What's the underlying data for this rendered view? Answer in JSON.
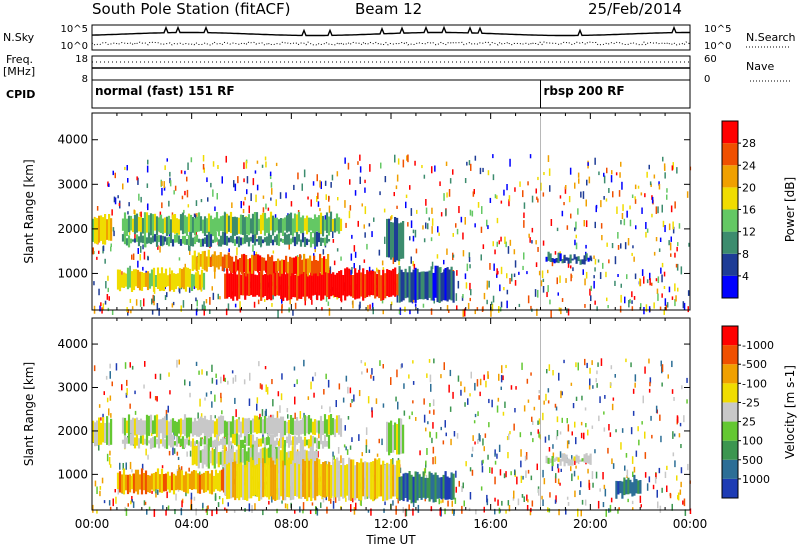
{
  "header": {
    "station": "South Pole Station (fitACF)",
    "beam": "Beam 12",
    "date": "25/Feb/2014"
  },
  "noise_panel": {
    "left_label": "N.Sky",
    "right_label": "N.Search",
    "left_ticks": [
      "10^5",
      "10^0"
    ],
    "right_ticks": [
      "10^5",
      "10^0"
    ]
  },
  "freq_panel": {
    "left_label_1": "Freq.",
    "left_label_2": "[MHz]",
    "right_label": "Nave",
    "left_ticks": [
      "18",
      "8"
    ],
    "right_ticks": [
      "60",
      "0"
    ]
  },
  "cpid": {
    "label": "CPID",
    "segments": [
      {
        "name": "normal (fast) 151 RF",
        "start_hour": 0
      },
      {
        "name": "rbsp 200 RF",
        "start_hour": 18
      }
    ]
  },
  "chart_data": [
    {
      "type": "heatmap",
      "ylabel": "Slant Range [km]",
      "x_hours": [
        0,
        24
      ],
      "ylim": [
        180,
        4600
      ],
      "yticks": [
        1000,
        2000,
        3000,
        4000
      ],
      "colorbar": {
        "label": "Power [dB]",
        "ticks": [
          "4",
          "8",
          "12",
          "16",
          "20",
          "24",
          "28"
        ],
        "colors": [
          "#0000ff",
          "#1e3c96",
          "#3c8c6e",
          "#64c864",
          "#f0dc00",
          "#f0a000",
          "#f05000",
          "#ff0000"
        ]
      },
      "regions": [
        {
          "h0": 0.0,
          "h1": 0.8,
          "r0": 1700,
          "r1": 2250,
          "val": 4
        },
        {
          "h0": 1.2,
          "h1": 10.0,
          "r0": 1900,
          "r1": 2300,
          "val": 3
        },
        {
          "h0": 1.2,
          "h1": 9.5,
          "r0": 1650,
          "r1": 1850,
          "val": 2
        },
        {
          "h0": 1.0,
          "h1": 4.5,
          "r0": 650,
          "r1": 1050,
          "val": 4
        },
        {
          "h0": 4.0,
          "h1": 5.5,
          "r0": 1100,
          "r1": 1450,
          "val": 5
        },
        {
          "h0": 5.3,
          "h1": 12.3,
          "r0": 450,
          "r1": 1050,
          "val": 7
        },
        {
          "h0": 5.5,
          "h1": 9.5,
          "r0": 1000,
          "r1": 1350,
          "val": 6
        },
        {
          "h0": 11.8,
          "h1": 12.5,
          "r0": 1300,
          "r1": 2200,
          "val": 2
        },
        {
          "h0": 12.3,
          "h1": 14.5,
          "r0": 400,
          "r1": 1100,
          "val": 1
        },
        {
          "h0": 18.2,
          "h1": 20.0,
          "r0": 1250,
          "r1": 1400,
          "val": 1
        }
      ]
    },
    {
      "type": "heatmap",
      "ylabel": "Slant Range [km]",
      "xlabel": "Time UT",
      "xtick_labels": [
        "00:00",
        "04:00",
        "08:00",
        "12:00",
        "16:00",
        "20:00",
        "00:00"
      ],
      "x_hours": [
        0,
        24
      ],
      "ylim": [
        180,
        4600
      ],
      "yticks": [
        1000,
        2000,
        3000,
        4000
      ],
      "colorbar": {
        "label": "Velocity [m s-1]",
        "ticks": [
          "1000",
          "500",
          "100",
          "25",
          "-25",
          "-100",
          "-500",
          "-1000"
        ],
        "colors": [
          "#1e3cb4",
          "#2c6e96",
          "#3c9650",
          "#64c832",
          "#c8c8c8",
          "#f0dc00",
          "#f0a000",
          "#f05000",
          "#ff0000"
        ]
      },
      "regions": [
        {
          "h0": 0.0,
          "h1": 0.8,
          "r0": 1700,
          "r1": 2250,
          "val": 4
        },
        {
          "h0": 1.2,
          "h1": 10.0,
          "r0": 1900,
          "r1": 2300,
          "val": 4
        },
        {
          "h0": 1.2,
          "h1": 9.5,
          "r0": 1650,
          "r1": 1850,
          "val": 4
        },
        {
          "h0": 4.0,
          "h1": 9.0,
          "r0": 1200,
          "r1": 1600,
          "val": 4
        },
        {
          "h0": 1.0,
          "h1": 5.5,
          "r0": 600,
          "r1": 1050,
          "val": 6
        },
        {
          "h0": 5.3,
          "h1": 12.3,
          "r0": 450,
          "r1": 1300,
          "val": 5
        },
        {
          "h0": 11.8,
          "h1": 12.5,
          "r0": 1500,
          "r1": 2200,
          "val": 4
        },
        {
          "h0": 12.3,
          "h1": 14.5,
          "r0": 400,
          "r1": 1000,
          "val": 1
        },
        {
          "h0": 18.2,
          "h1": 20.0,
          "r0": 1250,
          "r1": 1400,
          "val": 4
        },
        {
          "h0": 21.0,
          "h1": 22.0,
          "r0": 500,
          "r1": 900,
          "val": 1
        }
      ]
    }
  ]
}
